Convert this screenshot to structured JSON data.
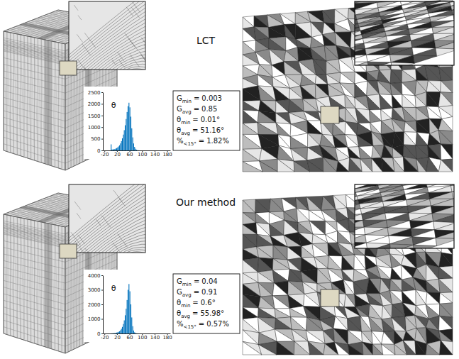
{
  "chart_data": [
    {
      "type": "histogram",
      "title": "LCT",
      "y_label": "θ",
      "color": "#0072bd",
      "bins": [
        0,
        3,
        6,
        9,
        12,
        15,
        18,
        21,
        24,
        27,
        30,
        33,
        36,
        39,
        42,
        45,
        48,
        51,
        54,
        57,
        60,
        63,
        66,
        69,
        72,
        75,
        78,
        81,
        84,
        87,
        90
      ],
      "values": [
        260,
        40,
        40,
        50,
        60,
        80,
        100,
        130,
        170,
        220,
        300,
        400,
        520,
        680,
        870,
        1080,
        1350,
        1650,
        1900,
        2050,
        1850,
        1450,
        950,
        560,
        300,
        150,
        70,
        30,
        10,
        5
      ],
      "xlim": [
        -25,
        190
      ],
      "xticks": [
        -20,
        20,
        60,
        100,
        140,
        180
      ],
      "ylim": [
        0,
        2500
      ],
      "yticks": [
        0,
        500,
        1000,
        1500,
        2000,
        2500
      ],
      "annotations": [
        {
          "label": "G",
          "sub": "min",
          "relation": "=",
          "value": 0.003
        },
        {
          "label": "G",
          "sub": "avg",
          "relation": "=",
          "value": 0.85
        },
        {
          "label": "θ",
          "sub": "min",
          "relation": "=",
          "value": 0.01,
          "unit": "°"
        },
        {
          "label": "θ",
          "sub": "avg",
          "relation": "=",
          "value": 51.16,
          "unit": "°"
        },
        {
          "label": "%",
          "sub": "<15°",
          "relation": "=",
          "value": 1.82,
          "unit": "%"
        }
      ]
    },
    {
      "type": "histogram",
      "title": "Our method",
      "y_label": "θ",
      "color": "#0072bd",
      "bins": [
        0,
        3,
        6,
        9,
        12,
        15,
        18,
        21,
        24,
        27,
        30,
        33,
        36,
        39,
        42,
        45,
        48,
        51,
        54,
        57,
        60,
        63,
        66,
        69,
        72,
        75,
        78,
        81,
        84,
        87,
        90
      ],
      "values": [
        5,
        10,
        15,
        20,
        30,
        40,
        60,
        80,
        110,
        150,
        220,
        320,
        450,
        650,
        900,
        1250,
        1700,
        2300,
        3000,
        3400,
        2900,
        2000,
        1100,
        500,
        200,
        80,
        30,
        10,
        5,
        2
      ],
      "xlim": [
        -25,
        190
      ],
      "xticks": [
        -20,
        20,
        60,
        100,
        140,
        180
      ],
      "ylim": [
        0,
        4000
      ],
      "yticks": [
        0,
        1000,
        2000,
        3000,
        4000
      ],
      "annotations": [
        {
          "label": "G",
          "sub": "min",
          "relation": "=",
          "value": 0.04
        },
        {
          "label": "G",
          "sub": "avg",
          "relation": "=",
          "value": 0.91
        },
        {
          "label": "θ",
          "sub": "min",
          "relation": "=",
          "value": 0.6,
          "unit": "°"
        },
        {
          "label": "θ",
          "sub": "avg",
          "relation": "=",
          "value": 55.98,
          "unit": "°"
        },
        {
          "label": "%",
          "sub": "<15°",
          "relation": "=",
          "value": 0.57,
          "unit": "%"
        }
      ]
    }
  ]
}
